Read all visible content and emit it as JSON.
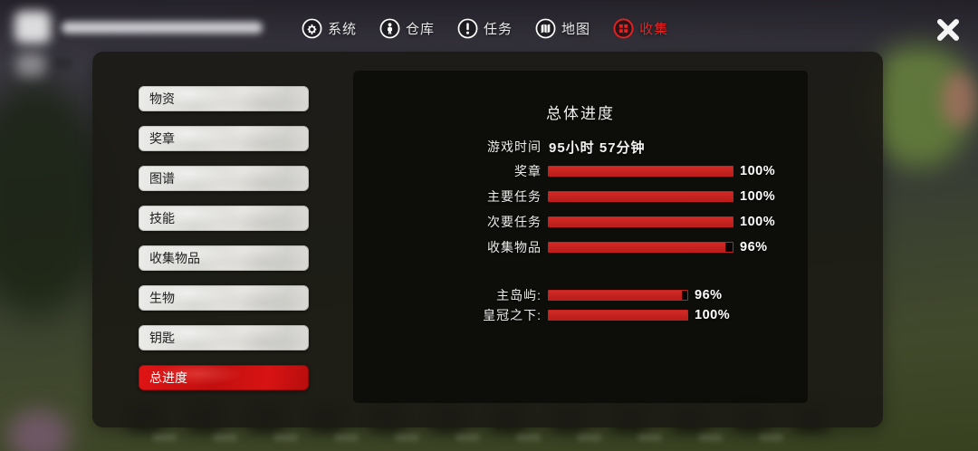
{
  "topbar": {
    "tabs": [
      {
        "label": "系统",
        "icon": "gear-icon",
        "active": false
      },
      {
        "label": "仓库",
        "icon": "person-icon",
        "active": false
      },
      {
        "label": "任务",
        "icon": "exclamation-icon",
        "active": false
      },
      {
        "label": "地图",
        "icon": "map-icon",
        "active": false
      },
      {
        "label": "收集",
        "icon": "collection-icon",
        "active": true
      }
    ]
  },
  "sidebar": {
    "items": [
      {
        "label": "物资",
        "active": false
      },
      {
        "label": "奖章",
        "active": false
      },
      {
        "label": "图谱",
        "active": false
      },
      {
        "label": "技能",
        "active": false
      },
      {
        "label": "收集物品",
        "active": false
      },
      {
        "label": "生物",
        "active": false
      },
      {
        "label": "钥匙",
        "active": false
      },
      {
        "label": "总进度",
        "active": true
      }
    ]
  },
  "main": {
    "title": "总体进度",
    "playtime_label": "游戏时间",
    "playtime_value": "95小时 57分钟",
    "progress": [
      {
        "label": "奖章",
        "percent": 100,
        "percent_label": "100%"
      },
      {
        "label": "主要任务",
        "percent": 100,
        "percent_label": "100%"
      },
      {
        "label": "次要任务",
        "percent": 100,
        "percent_label": "100%"
      },
      {
        "label": "收集物品",
        "percent": 96,
        "percent_label": "96%"
      }
    ],
    "areas": [
      {
        "label": "主岛屿:",
        "percent": 96,
        "percent_label": "96%"
      },
      {
        "label": "皇冠之下:",
        "percent": 100,
        "percent_label": "100%"
      }
    ]
  },
  "colors": {
    "bar_red": "#c2211e",
    "active_red": "#e01414",
    "tab_active_text": "#e62222"
  }
}
